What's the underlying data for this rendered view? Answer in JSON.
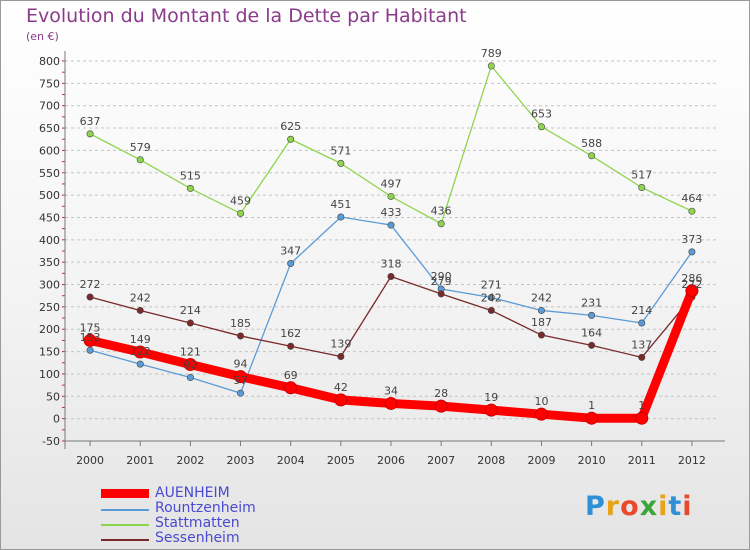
{
  "title": "Evolution du Montant de la Dette par Habitant",
  "unit_label": "(en €)",
  "brand": {
    "letters": [
      "P",
      "r",
      "o",
      "x",
      "i",
      "t",
      "i"
    ],
    "letter_colors": [
      "#2f8fd9",
      "#e8a418",
      "#e84a2a",
      "#3aa63a",
      "#e8a418",
      "#2f8fd9",
      "#e84a2a"
    ]
  },
  "chart_data": {
    "type": "line",
    "x": [
      "2000",
      "2001",
      "2002",
      "2003",
      "2004",
      "2005",
      "2006",
      "2007",
      "2008",
      "2009",
      "2010",
      "2011",
      "2012"
    ],
    "ylim": [
      -50,
      800
    ],
    "yticks": [
      "-50",
      "0",
      "50",
      "100",
      "150",
      "200",
      "250",
      "300",
      "350",
      "400",
      "450",
      "500",
      "550",
      "600",
      "650",
      "700",
      "750",
      "800"
    ],
    "grid": "horizontal dashed",
    "legend_position": "bottom-left",
    "series": [
      {
        "name": "AUENHEIM",
        "color": "#ff0000",
        "values": [
          175,
          149,
          121,
          94,
          69,
          42,
          34,
          28,
          19,
          10,
          1,
          1,
          286
        ],
        "labels": [
          "175",
          "149",
          "121",
          "94",
          "69",
          "42",
          "34",
          "28",
          "19",
          "10",
          "1",
          "1",
          "286"
        ]
      },
      {
        "name": "Rountzenheim",
        "color": "#5b9bd5",
        "values": [
          153,
          122,
          92,
          57,
          347,
          451,
          433,
          290,
          271,
          242,
          231,
          214,
          373
        ],
        "labels": [
          "153",
          "122",
          "92",
          "57",
          "347",
          "451",
          "433",
          "290",
          "271",
          "242",
          "231",
          "214",
          "373"
        ]
      },
      {
        "name": "Stattmatten",
        "color": "#8fd44f",
        "values": [
          637,
          579,
          515,
          459,
          625,
          571,
          497,
          436,
          789,
          653,
          588,
          517,
          464
        ],
        "labels": [
          "637",
          "579",
          "515",
          "459",
          "625",
          "571",
          "497",
          "436",
          "789",
          "653",
          "588",
          "517",
          "464"
        ]
      },
      {
        "name": "Sessenheim",
        "color": "#7a2a2a",
        "values": [
          272,
          242,
          214,
          185,
          162,
          139,
          318,
          279,
          242,
          187,
          164,
          137,
          272
        ],
        "labels": [
          "272",
          "242",
          "214",
          "185",
          "162",
          "139",
          "318",
          "279",
          "242",
          "187",
          "164",
          "137",
          "272"
        ]
      }
    ]
  }
}
